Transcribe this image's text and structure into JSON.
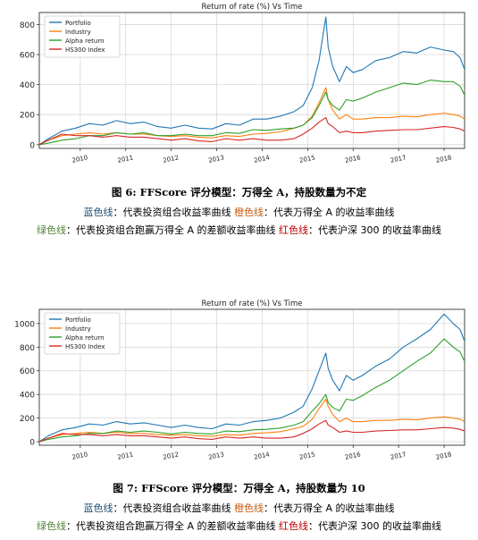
{
  "figures": [
    {
      "caption": "图 6: FFScore 评分模型：万得全 A，持股数量为不定",
      "legend_line1": [
        {
          "key": "蓝色线",
          "text": "：代表投资组合收益率曲线"
        },
        {
          "key": "橙色线",
          "text": "：代表万得全 A 的收益率曲线"
        }
      ],
      "legend_line2": [
        {
          "key": "绿色线",
          "text": "：代表投资组合跑赢万得全 A 的差额收益率曲线"
        },
        {
          "key": "红色线",
          "text": "：代表沪深 300 的收益率曲线"
        }
      ]
    },
    {
      "caption": "图 7: FFScore 评分模型：万得全 A，持股数量为 10",
      "legend_line1": [
        {
          "key": "蓝色线",
          "text": "：代表投资组合收益率曲线"
        },
        {
          "key": "橙色线",
          "text": "：代表万得全 A 的收益率曲线"
        }
      ],
      "legend_line2": [
        {
          "key": "绿色线",
          "text": "：代表投资组合跑赢万得全 A 的差额收益率曲线"
        },
        {
          "key": "红色线",
          "text": "：代表沪深 300 的收益率曲线"
        }
      ]
    }
  ],
  "colors": {
    "Portfolio": "#1f77b4",
    "Industry": "#ff7f0e",
    "Alpha return": "#2ca02c",
    "HS300 Index": "#d62728"
  },
  "chart_data": [
    {
      "type": "line",
      "title": "Return of rate (%) Vs Time",
      "xlabel": "",
      "ylabel": "",
      "x_ticks": [
        "2010",
        "2011",
        "2012",
        "2013",
        "2014",
        "2015",
        "2016",
        "2017",
        "2018"
      ],
      "y_ticks": [
        0,
        200,
        400,
        600,
        800
      ],
      "xlim": [
        2009.1,
        2018.45
      ],
      "ylim": [
        -25,
        880
      ],
      "grid": true,
      "legend": "top-left",
      "x": [
        2009.1,
        2009.3,
        2009.6,
        2009.9,
        2010.2,
        2010.5,
        2010.8,
        2011.1,
        2011.4,
        2011.7,
        2012.0,
        2012.3,
        2012.6,
        2012.9,
        2013.2,
        2013.5,
        2013.8,
        2014.1,
        2014.4,
        2014.7,
        2014.9,
        2015.1,
        2015.25,
        2015.4,
        2015.45,
        2015.55,
        2015.7,
        2015.85,
        2016.0,
        2016.2,
        2016.5,
        2016.8,
        2017.1,
        2017.4,
        2017.7,
        2018.0,
        2018.2,
        2018.35,
        2018.45
      ],
      "series": [
        {
          "name": "Portfolio",
          "values": [
            0,
            40,
            90,
            110,
            140,
            130,
            160,
            140,
            150,
            120,
            110,
            130,
            110,
            105,
            140,
            130,
            170,
            170,
            190,
            220,
            260,
            380,
            560,
            850,
            650,
            520,
            420,
            520,
            480,
            500,
            560,
            580,
            620,
            610,
            650,
            630,
            620,
            580,
            500
          ]
        },
        {
          "name": "Industry",
          "values": [
            0,
            30,
            60,
            70,
            80,
            70,
            80,
            70,
            70,
            60,
            55,
            60,
            50,
            45,
            60,
            55,
            70,
            75,
            85,
            110,
            130,
            190,
            280,
            380,
            300,
            230,
            170,
            200,
            170,
            170,
            180,
            180,
            190,
            185,
            200,
            210,
            200,
            190,
            170
          ]
        },
        {
          "name": "Alpha return",
          "values": [
            0,
            10,
            30,
            40,
            60,
            60,
            80,
            70,
            80,
            60,
            60,
            70,
            60,
            60,
            80,
            75,
            100,
            95,
            105,
            110,
            130,
            180,
            260,
            350,
            300,
            260,
            230,
            300,
            290,
            310,
            350,
            380,
            410,
            400,
            430,
            420,
            420,
            390,
            330
          ]
        },
        {
          "name": "HS300 Index",
          "values": [
            0,
            30,
            70,
            60,
            60,
            50,
            60,
            50,
            50,
            40,
            30,
            40,
            25,
            20,
            40,
            30,
            40,
            30,
            30,
            40,
            70,
            110,
            150,
            180,
            140,
            120,
            80,
            90,
            80,
            80,
            90,
            95,
            100,
            100,
            110,
            120,
            115,
            105,
            90
          ]
        }
      ]
    },
    {
      "type": "line",
      "title": "Return of rate (%) Vs Time",
      "xlabel": "",
      "ylabel": "",
      "x_ticks": [
        "2010",
        "2011",
        "2012",
        "2013",
        "2014",
        "2015",
        "2016",
        "2017",
        "2018"
      ],
      "y_ticks": [
        0,
        200,
        400,
        600,
        800,
        1000
      ],
      "xlim": [
        2009.1,
        2018.45
      ],
      "ylim": [
        -30,
        1120
      ],
      "grid": true,
      "legend": "top-left",
      "x": [
        2009.1,
        2009.3,
        2009.6,
        2009.9,
        2010.2,
        2010.5,
        2010.8,
        2011.1,
        2011.4,
        2011.7,
        2012.0,
        2012.3,
        2012.6,
        2012.9,
        2013.2,
        2013.5,
        2013.8,
        2014.1,
        2014.4,
        2014.7,
        2014.9,
        2015.1,
        2015.25,
        2015.4,
        2015.45,
        2015.55,
        2015.7,
        2015.85,
        2016.0,
        2016.2,
        2016.5,
        2016.8,
        2017.1,
        2017.4,
        2017.7,
        2018.0,
        2018.2,
        2018.35,
        2018.45
      ],
      "series": [
        {
          "name": "Portfolio",
          "values": [
            0,
            50,
            100,
            120,
            150,
            140,
            170,
            150,
            160,
            140,
            120,
            140,
            120,
            110,
            150,
            140,
            170,
            180,
            200,
            250,
            300,
            450,
            600,
            750,
            620,
            520,
            430,
            560,
            520,
            560,
            640,
            700,
            800,
            870,
            950,
            1080,
            1000,
            950,
            850
          ]
        },
        {
          "name": "Industry",
          "values": [
            0,
            30,
            60,
            70,
            80,
            70,
            80,
            70,
            70,
            60,
            55,
            60,
            50,
            45,
            60,
            55,
            70,
            75,
            85,
            110,
            130,
            190,
            280,
            360,
            300,
            230,
            170,
            200,
            170,
            170,
            180,
            180,
            190,
            185,
            200,
            210,
            200,
            190,
            170
          ]
        },
        {
          "name": "Alpha return",
          "values": [
            0,
            20,
            40,
            50,
            70,
            70,
            90,
            80,
            90,
            80,
            65,
            80,
            70,
            65,
            90,
            85,
            100,
            105,
            115,
            140,
            170,
            260,
            320,
            400,
            330,
            290,
            260,
            360,
            350,
            390,
            460,
            520,
            600,
            680,
            750,
            870,
            800,
            760,
            680
          ]
        },
        {
          "name": "HS300 Index",
          "values": [
            0,
            30,
            70,
            60,
            60,
            50,
            60,
            50,
            50,
            40,
            30,
            40,
            25,
            20,
            40,
            30,
            40,
            30,
            30,
            40,
            70,
            110,
            150,
            180,
            140,
            120,
            80,
            90,
            80,
            80,
            90,
            95,
            100,
            100,
            110,
            120,
            115,
            105,
            90
          ]
        }
      ]
    }
  ]
}
